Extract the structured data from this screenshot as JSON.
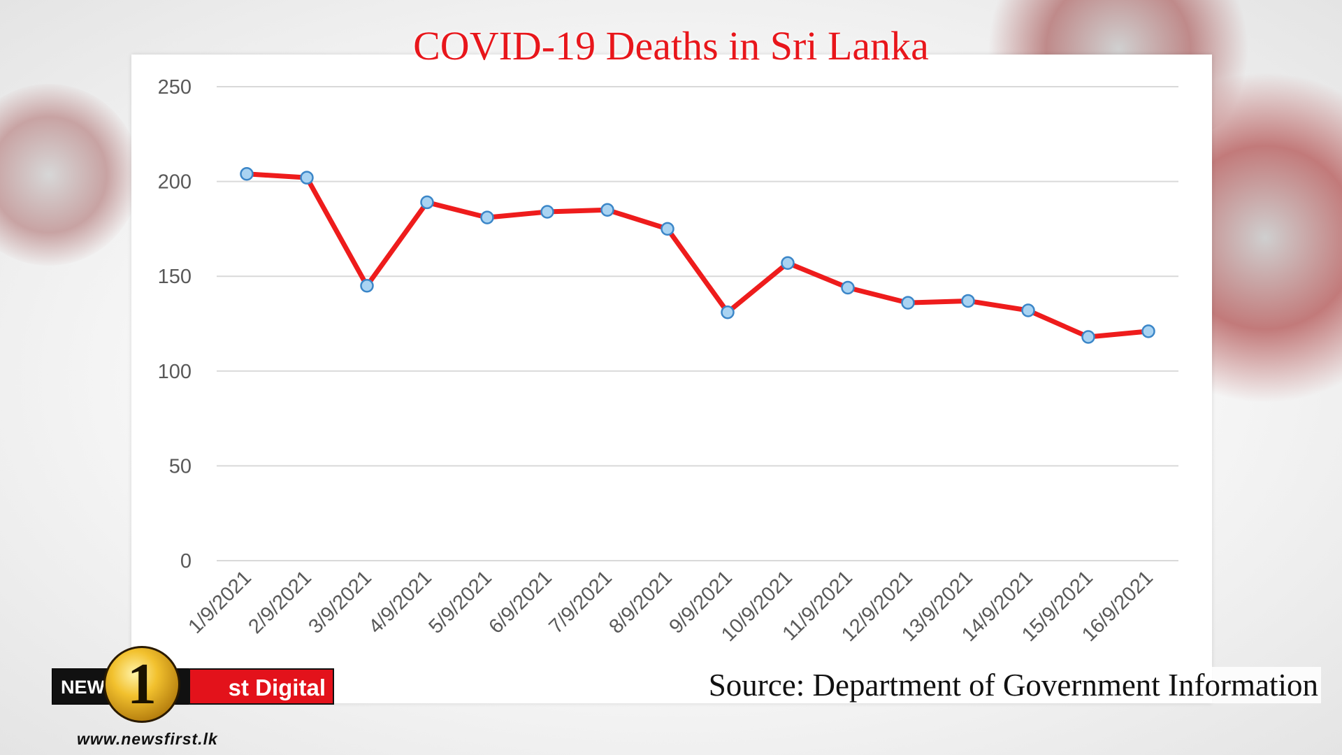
{
  "chart_data": {
    "type": "line",
    "title": "COVID-19 Deaths in Sri Lanka",
    "xlabel": "",
    "ylabel": "",
    "categories": [
      "1/9/2021",
      "2/9/2021",
      "3/9/2021",
      "4/9/2021",
      "5/9/2021",
      "6/9/2021",
      "7/9/2021",
      "8/9/2021",
      "9/9/2021",
      "10/9/2021",
      "11/9/2021",
      "12/9/2021",
      "13/9/2021",
      "14/9/2021",
      "15/9/2021",
      "16/9/2021"
    ],
    "series": [
      {
        "values": [
          204,
          202,
          145,
          189,
          181,
          184,
          185,
          175,
          131,
          157,
          144,
          136,
          137,
          132,
          118,
          121
        ]
      }
    ],
    "ylim": [
      0,
      250
    ],
    "yticks": [
      0,
      50,
      100,
      150,
      200,
      250
    ],
    "grid": true,
    "line_color": "#ee1c1c",
    "marker_color": "#a9d3f2",
    "marker_edge_color": "#3b86c8"
  },
  "source_text": "Source: Department of Government Information",
  "logo": {
    "left_text": "NEWS",
    "number": "1",
    "right_text": "st Digital",
    "url": "www.newsfirst.lk"
  }
}
